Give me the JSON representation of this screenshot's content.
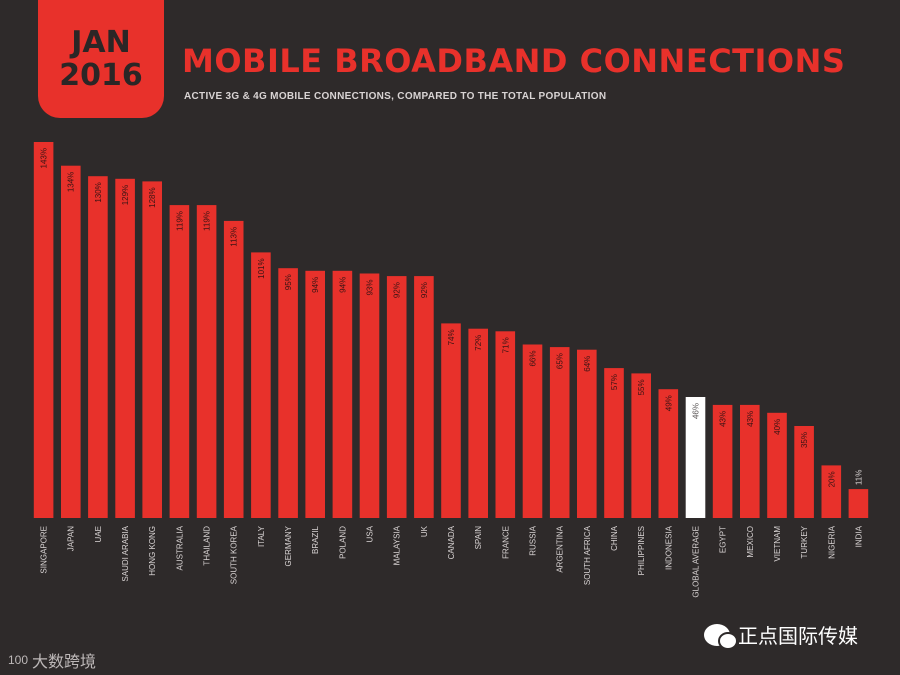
{
  "header": {
    "badge_month": "JAN",
    "badge_year": "2016",
    "title": "MOBILE BROADBAND CONNECTIONS",
    "subtitle": "ACTIVE 3G & 4G MOBILE CONNECTIONS, COMPARED TO THE TOTAL POPULATION"
  },
  "watermarks": {
    "left_logo": "100",
    "left_text": "大数跨境",
    "right_text": "正点国际传媒"
  },
  "colors": {
    "background": "#2e2a2a",
    "bar": "#e8312b",
    "highlight_bar": "#ffffff",
    "label": "#d9d4d4"
  },
  "chart_data": {
    "type": "bar",
    "categories": [
      "SINGAPORE",
      "JAPAN",
      "UAE",
      "SAUDI ARABIA",
      "HONG KONG",
      "AUSTRALIA",
      "THAILAND",
      "SOUTH KOREA",
      "ITALY",
      "GERMANY",
      "BRAZIL",
      "POLAND",
      "USA",
      "MALAYSIA",
      "UK",
      "CANADA",
      "SPAIN",
      "FRANCE",
      "RUSSIA",
      "ARGENTINA",
      "SOUTH AFRICA",
      "CHINA",
      "PHILIPPINES",
      "INDONESIA",
      "GLOBAL AVERAGE",
      "EGYPT",
      "MEXICO",
      "VIETNAM",
      "TURKEY",
      "NIGERIA",
      "INDIA"
    ],
    "values": [
      143,
      134,
      130,
      129,
      128,
      119,
      119,
      113,
      101,
      95,
      94,
      94,
      93,
      92,
      92,
      74,
      72,
      71,
      66,
      65,
      64,
      57,
      55,
      49,
      46,
      43,
      43,
      40,
      35,
      20,
      11
    ],
    "value_labels": [
      "143%",
      "134%",
      "130%",
      "129%",
      "128%",
      "119%",
      "119%",
      "113%",
      "101%",
      "95%",
      "94%",
      "94%",
      "93%",
      "92%",
      "92%",
      "74%",
      "72%",
      "71%",
      "66%",
      "65%",
      "64%",
      "57%",
      "55%",
      "49%",
      "46%",
      "43%",
      "43%",
      "40%",
      "35%",
      "20%",
      "11%"
    ],
    "highlight": "GLOBAL AVERAGE",
    "ylim": [
      0,
      143
    ],
    "grid": false
  }
}
